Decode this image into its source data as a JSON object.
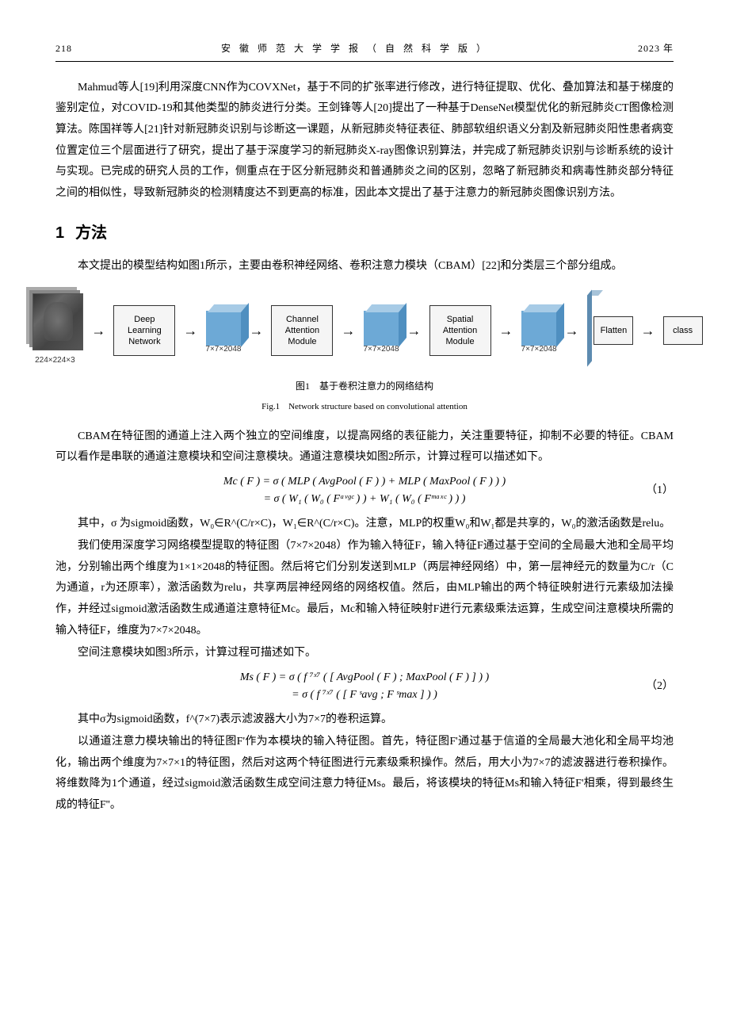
{
  "header": {
    "page_no": "218",
    "journal": "安 徽 师 范 大 学 学 报 （ 自 然 科 学 版 ）",
    "year": "2023 年"
  },
  "paragraphs": {
    "p1": "Mahmud等人[19]利用深度CNN作为COVXNet，基于不同的扩张率进行修改，进行特征提取、优化、叠加算法和基于梯度的鉴别定位，对COVID-19和其他类型的肺炎进行分类。王剑锋等人[20]提出了一种基于DenseNet模型优化的新冠肺炎CT图像检测算法。陈国祥等人[21]针对新冠肺炎识别与诊断这一课题，从新冠肺炎特征表征、肺部软组织语义分割及新冠肺炎阳性患者病变位置定位三个层面进行了研究，提出了基于深度学习的新冠肺炎X-ray图像识别算法，并完成了新冠肺炎识别与诊断系统的设计与实现。已完成的研究人员的工作，侧重点在于区分新冠肺炎和普通肺炎之间的区别，忽略了新冠肺炎和病毒性肺炎部分特征之间的相似性，导致新冠肺炎的检测精度达不到更高的标准，因此本文提出了基于注意力的新冠肺炎图像识别方法。",
    "p2": "本文提出的模型结构如图1所示，主要由卷积神经网络、卷积注意力模块（CBAM）[22]和分类层三个部分组成。",
    "p3": "CBAM在特征图的通道上注入两个独立的空间维度，以提高网络的表征能力，关注重要特征，抑制不必要的特征。CBAM可以看作是串联的通道注意模块和空间注意模块。通道注意模块如图2所示，计算过程可以描述如下。",
    "p4": "其中，σ 为sigmoid函数，W₀∈R^(C/r×C)，W₁∈R^(C/r×C)。注意，MLP的权重W₀和W₁都是共享的，W₀的激活函数是relu。",
    "p5": "我们使用深度学习网络模型提取的特征图（7×7×2048）作为输入特征F，输入特征F通过基于空间的全局最大池和全局平均池，分别输出两个维度为1×1×2048的特征图。然后将它们分别发送到MLP（两层神经网络）中，第一层神经元的数量为C/r（C为通道，r为还原率），激活函数为relu，共享两层神经网络的网络权值。然后，由MLP输出的两个特征映射进行元素级加法操作，并经过sigmoid激活函数生成通道注意特征Mc。最后，Mc和输入特征映射F进行元素级乘法运算，生成空间注意模块所需的输入特征F，维度为7×7×2048。",
    "p6": "空间注意模块如图3所示，计算过程可描述如下。",
    "p7": "其中σ为sigmoid函数，f^(7×7)表示滤波器大小为7×7的卷积运算。",
    "p8": "以通道注意力模块输出的特征图F'作为本模块的输入特征图。首先，特征图F'通过基于信道的全局最大池化和全局平均池化，输出两个维度为7×7×1的特征图，然后对这两个特征图进行元素级乘积操作。然后，用大小为7×7的滤波器进行卷积操作。将维数降为1个通道，经过sigmoid激活函数生成空间注意力特征Ms。最后，将该模块的特征Ms和输入特征F'相乘，得到最终生成的特征F''。"
  },
  "section": {
    "num": "1",
    "title": "方法"
  },
  "figure1": {
    "caption_cn": "图1　基于卷积注意力的网络结构",
    "caption_en": "Fig.1　Network structure based on convolutional attention",
    "input_dim": "224×224×3",
    "boxes": {
      "network": "Deep Learning Network",
      "channel": "Channel Attention Module",
      "spatial": "Spatial Attention Module",
      "flatten": "Flatten",
      "class": "class"
    },
    "feat_dim": "7×7×2048",
    "colors": {
      "cube_fill": "#6da9d6",
      "cube_top": "#a7cbe6",
      "cube_side": "#4f8fc0",
      "box_border": "#333333",
      "box_bg": "#f5f5f5",
      "tall_fill": "#7aa6c9"
    }
  },
  "equations": {
    "eq1_line1": "Mc ( F ) = σ ( MLP ( AvgPool ( F ) ) + MLP ( MaxPool ( F ) ) )",
    "eq1_line2": "= σ ( W₁ ( W₀ ( Fᵃᵛᵍᶜ ) ) + W₁ ( W₀ ( Fᵐᵃˣᶜ ) ) )",
    "eq1_num": "（1）",
    "eq2_line1": "Ms ( F ) = σ ( f ⁷ˣ⁷ ( [ AvgPool ( F ) ; MaxPool ( F ) ] ) )",
    "eq2_line2": "= σ ( f ⁷ˣ⁷ ( [ F ˢavg ; F ˢmax ] ) )",
    "eq2_num": "（2）"
  }
}
